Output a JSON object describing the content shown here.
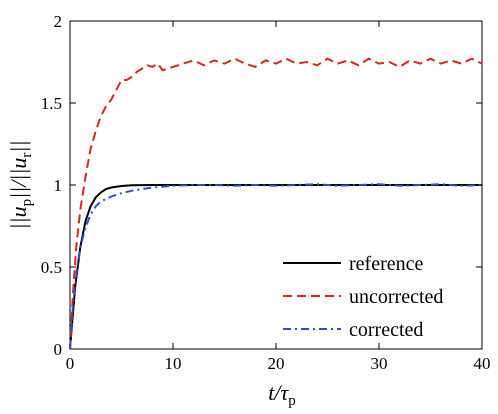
{
  "chart_data": {
    "type": "line",
    "xlabel": "t/τp",
    "ylabel": "||up||/||ur||",
    "xlim": [
      0,
      40
    ],
    "ylim": [
      0,
      2
    ],
    "xticks": [
      0,
      10,
      20,
      30,
      40
    ],
    "yticks": [
      0,
      0.5,
      1,
      1.5,
      2
    ],
    "ytick_labels": [
      "0",
      "0.5",
      "1",
      "1.5",
      "2"
    ],
    "grid": false,
    "legend_position": "bottom-right",
    "series": [
      {
        "name": "reference",
        "color": "#000000",
        "style": "solid",
        "points": [
          [
            0,
            0
          ],
          [
            0.5,
            0.38
          ],
          [
            1,
            0.62
          ],
          [
            1.5,
            0.78
          ],
          [
            2,
            0.87
          ],
          [
            2.5,
            0.925
          ],
          [
            3,
            0.955
          ],
          [
            3.5,
            0.975
          ],
          [
            4,
            0.985
          ],
          [
            5,
            0.994
          ],
          [
            6,
            0.998
          ],
          [
            8,
            1.0
          ],
          [
            10,
            1.0
          ],
          [
            15,
            1.0
          ],
          [
            20,
            1.0
          ],
          [
            25,
            1.0
          ],
          [
            30,
            1.0
          ],
          [
            35,
            1.0
          ],
          [
            40,
            1.0
          ]
        ]
      },
      {
        "name": "uncorrected",
        "color": "#e0241b",
        "style": "dashed",
        "points": [
          [
            0,
            0
          ],
          [
            0.3,
            0.35
          ],
          [
            0.6,
            0.62
          ],
          [
            1,
            0.85
          ],
          [
            1.5,
            1.05
          ],
          [
            2,
            1.22
          ],
          [
            2.5,
            1.33
          ],
          [
            3,
            1.42
          ],
          [
            3.5,
            1.48
          ],
          [
            4,
            1.52
          ],
          [
            4.5,
            1.58
          ],
          [
            5,
            1.64
          ],
          [
            5.5,
            1.64
          ],
          [
            6,
            1.66
          ],
          [
            6.5,
            1.69
          ],
          [
            7,
            1.71
          ],
          [
            7.5,
            1.73
          ],
          [
            8,
            1.72
          ],
          [
            8.5,
            1.74
          ],
          [
            9,
            1.7
          ],
          [
            10,
            1.72
          ],
          [
            11,
            1.74
          ],
          [
            12,
            1.76
          ],
          [
            13,
            1.73
          ],
          [
            14,
            1.76
          ],
          [
            15,
            1.74
          ],
          [
            16,
            1.77
          ],
          [
            17,
            1.74
          ],
          [
            18,
            1.72
          ],
          [
            19,
            1.76
          ],
          [
            20,
            1.74
          ],
          [
            21,
            1.77
          ],
          [
            22,
            1.74
          ],
          [
            23,
            1.75
          ],
          [
            24,
            1.73
          ],
          [
            25,
            1.77
          ],
          [
            26,
            1.74
          ],
          [
            27,
            1.76
          ],
          [
            28,
            1.73
          ],
          [
            29,
            1.77
          ],
          [
            30,
            1.74
          ],
          [
            31,
            1.75
          ],
          [
            32,
            1.72
          ],
          [
            33,
            1.76
          ],
          [
            34,
            1.74
          ],
          [
            35,
            1.77
          ],
          [
            36,
            1.74
          ],
          [
            37,
            1.76
          ],
          [
            38,
            1.74
          ],
          [
            39,
            1.77
          ],
          [
            40,
            1.74
          ]
        ]
      },
      {
        "name": "corrected",
        "color": "#2d4fd3",
        "style": "dashdot",
        "points": [
          [
            0,
            0
          ],
          [
            0.3,
            0.28
          ],
          [
            0.7,
            0.5
          ],
          [
            1,
            0.62
          ],
          [
            1.5,
            0.74
          ],
          [
            2,
            0.82
          ],
          [
            2.5,
            0.87
          ],
          [
            3,
            0.9
          ],
          [
            4,
            0.93
          ],
          [
            5,
            0.95
          ],
          [
            6,
            0.965
          ],
          [
            7,
            0.975
          ],
          [
            8,
            0.985
          ],
          [
            9,
            0.99
          ],
          [
            10,
            0.995
          ],
          [
            12,
            1.0
          ],
          [
            14,
            1.0
          ],
          [
            16,
            0.995
          ],
          [
            18,
            1.0
          ],
          [
            20,
            0.995
          ],
          [
            22,
            1.0
          ],
          [
            24,
            1.005
          ],
          [
            26,
            0.995
          ],
          [
            28,
            1.0
          ],
          [
            30,
            1.005
          ],
          [
            32,
            0.995
          ],
          [
            34,
            1.0
          ],
          [
            36,
            1.005
          ],
          [
            38,
            0.995
          ],
          [
            40,
            1.0
          ]
        ]
      }
    ]
  }
}
